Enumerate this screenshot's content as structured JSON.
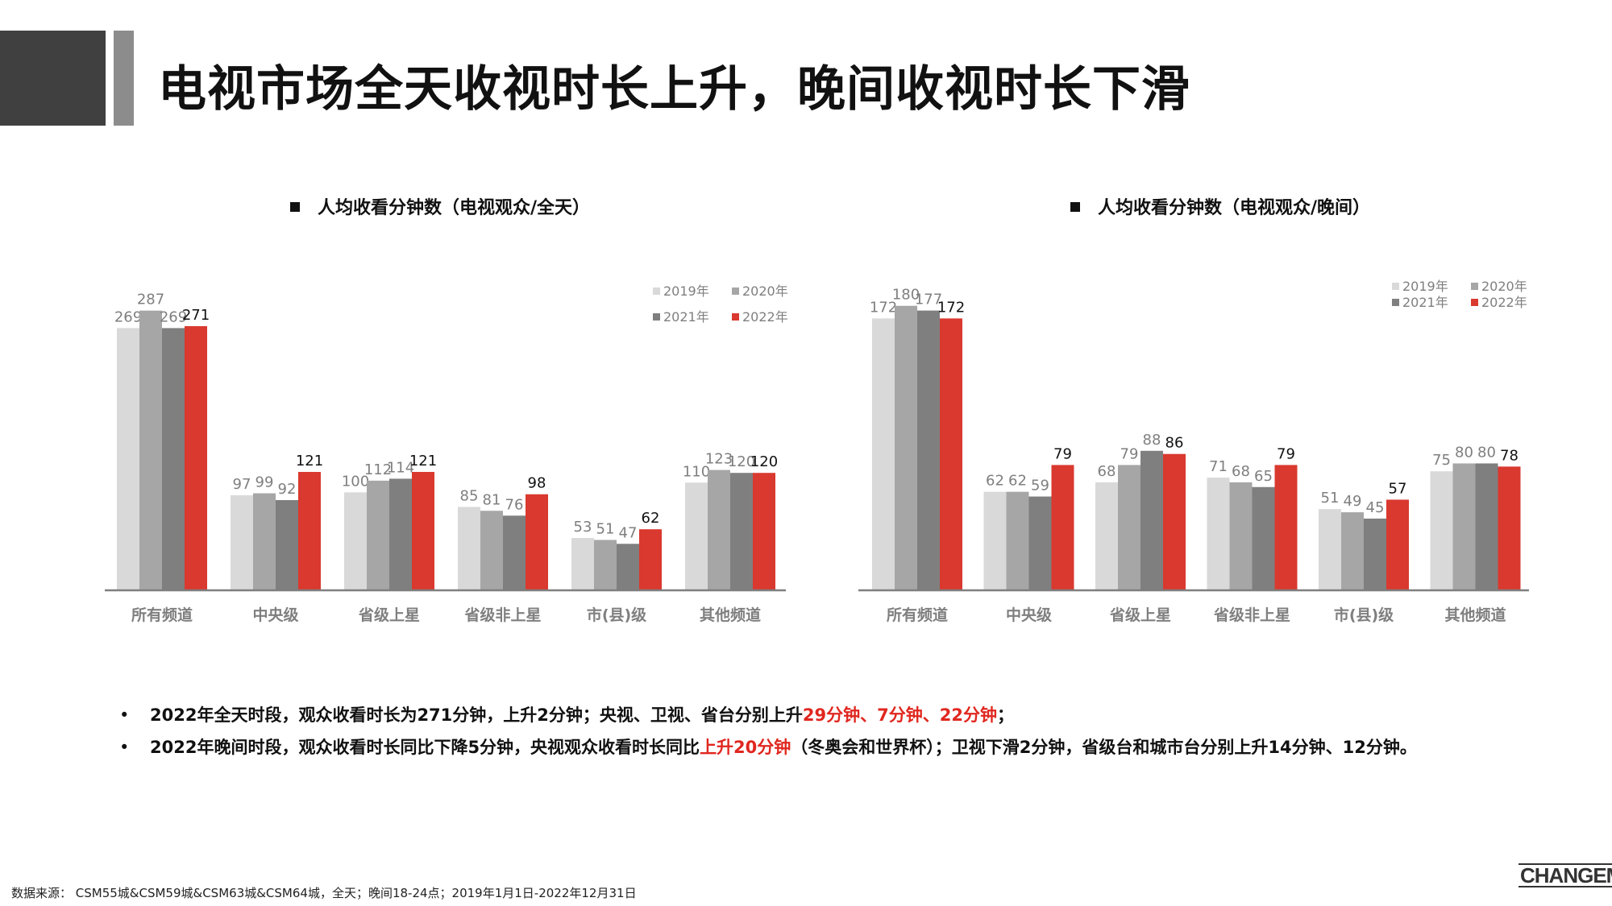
{
  "page": {
    "title": "电视市场全天收视时长上升，晚间收视时长下滑"
  },
  "colors": {
    "2019": "#d9d9d9",
    "2020": "#a6a6a6",
    "2021": "#7f7f7f",
    "2022": "#d9392f",
    "label_default": "#7f7f7f",
    "label_2022": "#111111",
    "highlight": "#e0271f"
  },
  "chart_data": [
    {
      "type": "bar",
      "title": "人均收看分钟数（电视观众/全天）",
      "legend_position": "top-right",
      "grid": false,
      "ylim": [
        0,
        300
      ],
      "categories": [
        "所有频道",
        "中央级",
        "省级上星",
        "省级非上星",
        "市(县)级",
        "其他频道"
      ],
      "series": [
        {
          "name": "2019年",
          "values": [
            269,
            97,
            100,
            85,
            53,
            110
          ]
        },
        {
          "name": "2020年",
          "values": [
            287,
            99,
            112,
            81,
            51,
            123
          ]
        },
        {
          "name": "2021年",
          "values": [
            269,
            92,
            114,
            76,
            47,
            120
          ]
        },
        {
          "name": "2022年",
          "values": [
            271,
            121,
            121,
            98,
            62,
            120
          ]
        }
      ]
    },
    {
      "type": "bar",
      "title": "人均收看分钟数（电视观众/晚间）",
      "legend_position": "top-right",
      "grid": false,
      "ylim": [
        0,
        186
      ],
      "categories": [
        "所有频道",
        "中央级",
        "省级上星",
        "省级非上星",
        "市(县)级",
        "其他频道"
      ],
      "series": [
        {
          "name": "2019年",
          "values": [
            172,
            62,
            68,
            71,
            51,
            75
          ]
        },
        {
          "name": "2020年",
          "values": [
            180,
            62,
            79,
            68,
            49,
            80
          ]
        },
        {
          "name": "2021年",
          "values": [
            177,
            59,
            88,
            65,
            45,
            80
          ]
        },
        {
          "name": "2022年",
          "values": [
            172,
            79,
            86,
            79,
            57,
            78
          ]
        }
      ]
    }
  ],
  "bullets": [
    {
      "parts": [
        {
          "text": "2022年全天时段，观众收看时长为271分钟，上升2分钟；央视、卫视、省台分别上升",
          "highlight": false
        },
        {
          "text": "29分钟、7分钟、22分钟",
          "highlight": true
        },
        {
          "text": "；",
          "highlight": false
        }
      ]
    },
    {
      "parts": [
        {
          "text": "2022年晚间时段，观众收看时长同比下降5分钟，央视观众收看时长同比",
          "highlight": false
        },
        {
          "text": "上升20分钟",
          "highlight": true
        },
        {
          "text": "（冬奥会和世界杯）；卫视下滑2分钟，省级台和城市台分别上升14分钟、12分钟。",
          "highlight": false
        }
      ]
    }
  ],
  "bullet_marker": "•",
  "source": "数据来源： CSM55城&CSM59城&CSM63城&CSM64城，全天；晚间18-24点；2019年1月1日-2022年12月31日",
  "logo": "CHANGEMO"
}
